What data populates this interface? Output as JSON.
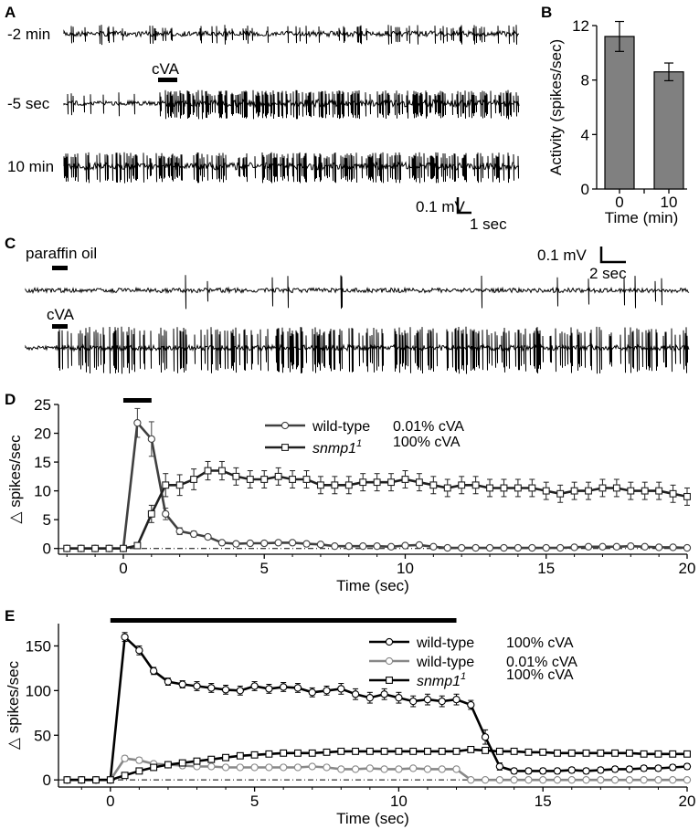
{
  "panel_letters": {
    "a": "A",
    "b": "B",
    "c": "C",
    "d": "D",
    "e": "E"
  },
  "panel_a": {
    "trace_labels": [
      "-2 min",
      "-5 sec",
      "10 min"
    ],
    "stimulus_label": "cVA",
    "scalebar_voltage": "0.1 mV",
    "scalebar_time": "1 sec"
  },
  "panel_c": {
    "trace1_label": "paraffin oil",
    "trace2_label": "cVA",
    "scalebar_voltage": "0.1 mV",
    "scalebar_time": "2 sec"
  },
  "chart_data": [
    {
      "id": "B",
      "type": "bar",
      "categories": [
        "0",
        "10"
      ],
      "values": [
        11.2,
        8.6
      ],
      "errors": [
        1.1,
        0.65
      ],
      "xlabel": "Time (min)",
      "ylabel": "Activity (spikes/sec)",
      "ylim": [
        0,
        12
      ],
      "yticks": [
        0,
        4,
        8,
        12
      ],
      "bar_color": "#808080"
    },
    {
      "id": "D",
      "type": "line",
      "xlabel": "Time (sec)",
      "ylabel": "△ spikes/sec",
      "xlim": [
        -2.3,
        20
      ],
      "ylim": [
        -1,
        25
      ],
      "xticks": [
        0,
        5,
        10,
        15,
        20
      ],
      "yticks": [
        0,
        5,
        10,
        15,
        20,
        25
      ],
      "stimulus_bar": [
        0,
        1
      ],
      "legend_position": "top-right",
      "series": [
        {
          "legend_genotype": "wild-type",
          "legend_concentration": "0.01% cVA",
          "marker": "circle",
          "color": "#404040",
          "x": [
            -2,
            -1.5,
            -1,
            -0.5,
            0,
            0.5,
            1,
            1.5,
            2,
            2.5,
            3,
            3.5,
            4,
            4.5,
            5,
            5.5,
            6,
            6.5,
            7,
            7.5,
            8,
            8.5,
            9,
            9.5,
            10,
            10.5,
            11,
            11.5,
            12,
            12.5,
            13,
            13.5,
            14,
            14.5,
            15,
            15.5,
            16,
            16.5,
            17,
            17.5,
            18,
            18.5,
            19,
            19.5,
            20
          ],
          "y": [
            0,
            0,
            0,
            0,
            0,
            21.8,
            19,
            6,
            3,
            2.5,
            2,
            1,
            0.8,
            0.9,
            0.9,
            1,
            1,
            0.8,
            0.7,
            0.4,
            0.4,
            0.4,
            0.4,
            0.3,
            0.5,
            0.6,
            0.3,
            0.1,
            0.1,
            0.1,
            0.1,
            0.1,
            0.1,
            0.1,
            0.1,
            0.1,
            0.2,
            0.3,
            0.3,
            0.3,
            0.4,
            0.3,
            0.2,
            0.2,
            0.1
          ],
          "err": [
            0.1,
            0.1,
            0.1,
            0.1,
            0.1,
            2.5,
            3,
            1,
            0.6,
            0.5,
            0.4,
            0.3,
            0.3,
            0.3,
            0.3,
            0.3,
            0.3,
            0.3,
            0.3,
            0.3,
            0.3,
            0.3,
            0.3,
            0.3,
            0.3,
            0.3,
            0.3,
            0.2,
            0.2,
            0.2,
            0.2,
            0.2,
            0.2,
            0.2,
            0.2,
            0.2,
            0.2,
            0.2,
            0.2,
            0.2,
            0.2,
            0.2,
            0.2,
            0.2,
            0.2
          ]
        },
        {
          "legend_genotype": "snmp1",
          "legend_superscript": "1",
          "legend_concentration": "100% cVA",
          "marker": "square",
          "color": "#202020",
          "x": [
            -2,
            -1.5,
            -1,
            -0.5,
            0,
            0.5,
            1,
            1.5,
            2,
            2.5,
            3,
            3.5,
            4,
            4.5,
            5,
            5.5,
            6,
            6.5,
            7,
            7.5,
            8,
            8.5,
            9,
            9.5,
            10,
            10.5,
            11,
            11.5,
            12,
            12.5,
            13,
            13.5,
            14,
            14.5,
            15,
            15.5,
            16,
            16.5,
            17,
            17.5,
            18,
            18.5,
            19,
            19.5,
            20
          ],
          "y": [
            0,
            0,
            0,
            0,
            0,
            0.5,
            6,
            11,
            11,
            12,
            13.5,
            13.5,
            12.5,
            12,
            12,
            12.5,
            12,
            12,
            11,
            11,
            11,
            11.5,
            11.5,
            11.5,
            12,
            11.5,
            11,
            10.5,
            11,
            11,
            10.5,
            10.5,
            10.5,
            10.5,
            10,
            9.5,
            10,
            10,
            10.5,
            10.5,
            10,
            10,
            10,
            9.5,
            9
          ],
          "err": [
            0.1,
            0.1,
            0.1,
            0.1,
            0.1,
            0.5,
            1.5,
            2,
            1.8,
            1.8,
            1.6,
            1.6,
            1.5,
            1.5,
            1.5,
            1.5,
            1.5,
            1.5,
            1.5,
            1.5,
            1.5,
            1.5,
            1.5,
            1.5,
            1.5,
            1.5,
            1.5,
            1.5,
            1.5,
            1.5,
            1.5,
            1.5,
            1.5,
            1.5,
            1.5,
            1.5,
            1.5,
            1.5,
            1.5,
            1.5,
            1.5,
            1.5,
            1.5,
            1.5,
            1.5
          ]
        }
      ]
    },
    {
      "id": "E",
      "type": "line",
      "xlabel": "Time (sec)",
      "ylabel": "△ spikes/sec",
      "xlim": [
        -1.8,
        20
      ],
      "ylim": [
        -8,
        175
      ],
      "xticks": [
        0,
        5,
        10,
        15,
        20
      ],
      "yticks": [
        0,
        50,
        100,
        150
      ],
      "stimulus_bar": [
        0,
        12
      ],
      "legend_position": "top-right",
      "series": [
        {
          "legend_genotype": "wild-type",
          "legend_concentration": "100% cVA",
          "marker": "circle",
          "color": "#000000",
          "x": [
            -1.5,
            -1,
            -0.5,
            0,
            0.5,
            1,
            1.5,
            2,
            2.5,
            3,
            3.5,
            4,
            4.5,
            5,
            5.5,
            6,
            6.5,
            7,
            7.5,
            8,
            8.5,
            9,
            9.5,
            10,
            10.5,
            11,
            11.5,
            12,
            12.5,
            13,
            13.5,
            14,
            14.5,
            15,
            15.5,
            16,
            16.5,
            17,
            17.5,
            18,
            18.5,
            19,
            19.5,
            20
          ],
          "y": [
            0,
            0,
            0,
            0,
            160,
            145,
            122,
            110,
            107,
            105,
            103,
            101,
            100,
            105,
            102,
            104,
            103,
            98,
            100,
            102,
            96,
            92,
            96,
            92,
            88,
            90,
            88,
            90,
            84,
            48,
            15,
            10,
            10,
            10,
            10,
            11,
            10,
            11,
            12,
            12,
            13,
            13,
            14,
            15
          ],
          "err": [
            1,
            1,
            1,
            1,
            5,
            5,
            4,
            4,
            4,
            5,
            5,
            5,
            5,
            5,
            5,
            5,
            5,
            5,
            5,
            6,
            6,
            6,
            6,
            6,
            6,
            6,
            6,
            6,
            5,
            8,
            4,
            3,
            3,
            3,
            3,
            3,
            3,
            3,
            3,
            3,
            3,
            3,
            3,
            3
          ]
        },
        {
          "legend_genotype": "wild-type",
          "legend_concentration": "0.01% cVA",
          "marker": "circle",
          "color": "#888888",
          "x": [
            -1.5,
            -1,
            -0.5,
            0,
            0.5,
            1,
            1.5,
            2,
            2.5,
            3,
            3.5,
            4,
            4.5,
            5,
            5.5,
            6,
            6.5,
            7,
            7.5,
            8,
            8.5,
            9,
            9.5,
            10,
            10.5,
            11,
            11.5,
            12,
            12.5,
            13,
            13.5,
            14,
            14.5,
            15,
            15.5,
            16,
            16.5,
            17,
            17.5,
            18,
            18.5,
            19,
            19.5,
            20
          ],
          "y": [
            0,
            0,
            0,
            0,
            24,
            22,
            18,
            17,
            16,
            15,
            15,
            14,
            14,
            14,
            14,
            14,
            14,
            15,
            14,
            12,
            12,
            13,
            12,
            12,
            13,
            12,
            12,
            12,
            0,
            0,
            0,
            0,
            0,
            0,
            0,
            0,
            0,
            0,
            0,
            0,
            0,
            0,
            0,
            0
          ],
          "err": [
            0.5,
            0.5,
            0.5,
            0.5,
            3,
            3,
            2,
            2,
            2,
            2,
            2,
            2,
            2,
            2,
            2,
            2,
            2,
            2,
            2,
            2,
            2,
            2,
            2,
            2,
            2,
            2,
            2,
            2,
            0.5,
            0.5,
            0.5,
            0.5,
            0.5,
            0.5,
            0.5,
            0.5,
            0.5,
            0.5,
            0.5,
            0.5,
            0.5,
            0.5,
            0.5,
            0.5
          ]
        },
        {
          "legend_genotype": "snmp1",
          "legend_superscript": "1",
          "legend_concentration": "100% cVA",
          "marker": "square",
          "color": "#000000",
          "x": [
            -1.5,
            -1,
            -0.5,
            0,
            0.5,
            1,
            1.5,
            2,
            2.5,
            3,
            3.5,
            4,
            4.5,
            5,
            5.5,
            6,
            6.5,
            7,
            7.5,
            8,
            8.5,
            9,
            9.5,
            10,
            10.5,
            11,
            11.5,
            12,
            12.5,
            13,
            13.5,
            14,
            14.5,
            15,
            15.5,
            16,
            16.5,
            17,
            17.5,
            18,
            18.5,
            19,
            19.5,
            20
          ],
          "y": [
            0,
            0,
            0,
            0,
            5,
            10,
            14,
            17,
            19,
            21,
            23,
            25,
            27,
            28,
            29,
            30,
            30,
            30,
            31,
            32,
            32,
            32,
            32,
            32,
            32,
            32,
            32,
            32,
            34,
            33,
            32,
            32,
            31,
            31,
            30,
            30,
            30,
            30,
            30,
            30,
            29,
            29,
            29,
            29
          ],
          "err": [
            1,
            1,
            1,
            1,
            2,
            3,
            3,
            3,
            3,
            3,
            3,
            3,
            3,
            3,
            3,
            3,
            3,
            3,
            3,
            3,
            3,
            3,
            3,
            3,
            3,
            3,
            3,
            3,
            3,
            3,
            3,
            3,
            3,
            3,
            3,
            3,
            3,
            3,
            3,
            3,
            3,
            3,
            3,
            3
          ]
        }
      ]
    }
  ]
}
